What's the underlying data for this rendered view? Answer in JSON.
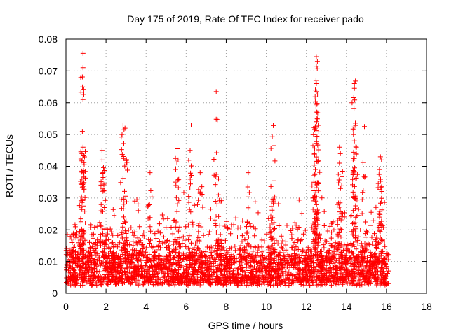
{
  "chart_data": {
    "type": "scatter",
    "title": "Day 175 of 2019, Rate Of TEC Index for receiver pado",
    "xlabel": "GPS time / hours",
    "ylabel": "ROTI / TECUs",
    "xlim": [
      0,
      18
    ],
    "ylim": [
      0,
      0.08
    ],
    "x_ticks": [
      0,
      2,
      4,
      6,
      8,
      10,
      12,
      14,
      16,
      18
    ],
    "x_tick_labels": [
      "0",
      "2",
      "4",
      "6",
      "8",
      "10",
      "12",
      "14",
      "16",
      "18"
    ],
    "y_ticks": [
      0,
      0.01,
      0.02,
      0.03,
      0.04,
      0.05,
      0.06,
      0.07,
      0.08
    ],
    "y_tick_labels": [
      "0",
      "0.01",
      "0.02",
      "0.03",
      "0.04",
      "0.05",
      "0.06",
      "0.07",
      "0.08"
    ],
    "grid": true,
    "marker": "+",
    "color": "#ff0000",
    "data_x_range": [
      0,
      16.1
    ],
    "baseline_band": [
      0.003,
      0.012
    ],
    "notable_points": [
      {
        "x": 0.85,
        "y": 0.0755
      },
      {
        "x": 0.85,
        "y": 0.071
      },
      {
        "x": 0.85,
        "y": 0.061
      },
      {
        "x": 0.82,
        "y": 0.051
      },
      {
        "x": 0.85,
        "y": 0.046
      },
      {
        "x": 0.8,
        "y": 0.044
      },
      {
        "x": 0.8,
        "y": 0.036
      },
      {
        "x": 1.8,
        "y": 0.045
      },
      {
        "x": 1.8,
        "y": 0.042
      },
      {
        "x": 1.85,
        "y": 0.038
      },
      {
        "x": 2.85,
        "y": 0.053
      },
      {
        "x": 2.9,
        "y": 0.0515
      },
      {
        "x": 2.8,
        "y": 0.05
      },
      {
        "x": 2.95,
        "y": 0.052
      },
      {
        "x": 4.2,
        "y": 0.038
      },
      {
        "x": 5.55,
        "y": 0.0455
      },
      {
        "x": 5.6,
        "y": 0.042
      },
      {
        "x": 6.25,
        "y": 0.053
      },
      {
        "x": 6.2,
        "y": 0.045
      },
      {
        "x": 6.7,
        "y": 0.038
      },
      {
        "x": 7.5,
        "y": 0.0635
      },
      {
        "x": 7.5,
        "y": 0.0548
      },
      {
        "x": 9.1,
        "y": 0.038
      },
      {
        "x": 10.35,
        "y": 0.0528
      },
      {
        "x": 10.3,
        "y": 0.0493
      },
      {
        "x": 12.5,
        "y": 0.0745
      },
      {
        "x": 12.55,
        "y": 0.073
      },
      {
        "x": 12.5,
        "y": 0.0715
      },
      {
        "x": 12.48,
        "y": 0.067
      },
      {
        "x": 12.5,
        "y": 0.066
      },
      {
        "x": 12.45,
        "y": 0.064
      },
      {
        "x": 12.5,
        "y": 0.0635
      },
      {
        "x": 12.45,
        "y": 0.0525
      },
      {
        "x": 12.4,
        "y": 0.044
      },
      {
        "x": 12.45,
        "y": 0.039
      },
      {
        "x": 13.65,
        "y": 0.046
      },
      {
        "x": 13.7,
        "y": 0.044
      },
      {
        "x": 13.65,
        "y": 0.041
      },
      {
        "x": 14.45,
        "y": 0.0668
      },
      {
        "x": 14.4,
        "y": 0.066
      },
      {
        "x": 14.4,
        "y": 0.0645
      },
      {
        "x": 14.35,
        "y": 0.05
      },
      {
        "x": 14.4,
        "y": 0.048
      },
      {
        "x": 14.5,
        "y": 0.046
      },
      {
        "x": 14.9,
        "y": 0.0525
      },
      {
        "x": 15.7,
        "y": 0.043
      },
      {
        "x": 15.75,
        "y": 0.042
      },
      {
        "x": 15.65,
        "y": 0.039
      }
    ]
  }
}
